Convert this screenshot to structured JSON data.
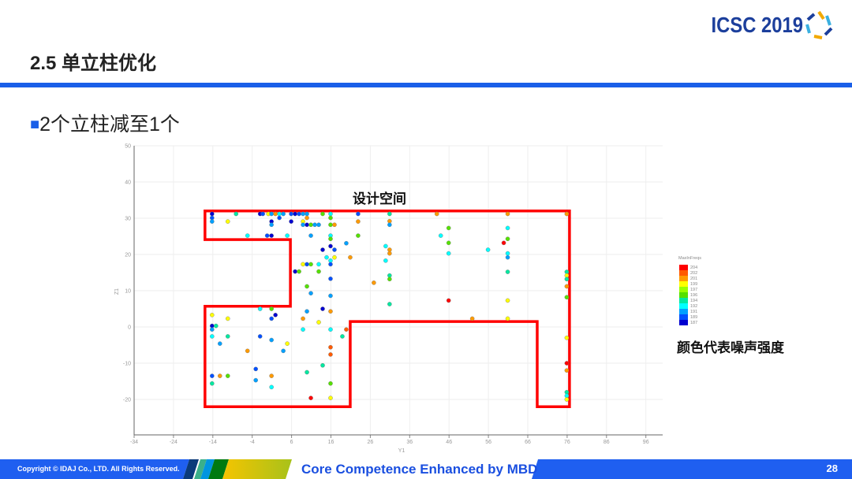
{
  "header": {
    "title": "2.5 单立柱优化",
    "logo_text": "ICSC 2019"
  },
  "bullet": {
    "marker": "■",
    "text": "2个立柱减至1个"
  },
  "annotations": {
    "design_space": "设计空间",
    "color_meaning": "颜色代表噪声强度"
  },
  "footer": {
    "copyright": "Copyright © IDAJ Co., LTD. All Rights Reserved.",
    "slogan": "Core Competence Enhanced by MBD",
    "page_number": "28"
  },
  "colors": {
    "accent": "#1a5fe8",
    "outline": "#ff0000"
  },
  "chart_data": {
    "type": "scatter",
    "xlabel": "Y1",
    "ylabel": "Z1",
    "xlim": [
      -34,
      100
    ],
    "ylim": [
      -30,
      50
    ],
    "xticks": [
      -34,
      -24,
      -14,
      -4,
      6,
      16,
      26,
      36,
      46,
      56,
      66,
      76,
      86,
      96
    ],
    "yticks": [
      50,
      40,
      30,
      20,
      10,
      0,
      -10,
      -20
    ],
    "grid": true,
    "legend": {
      "title": "MaxInFreqs",
      "placement": "right",
      "values": [
        204,
        202,
        201,
        199,
        197,
        196,
        194,
        192,
        191,
        189,
        187
      ],
      "colors": [
        "#ff0000",
        "#ff5a00",
        "#ff9a00",
        "#ffff00",
        "#9aff00",
        "#55e000",
        "#00e8a0",
        "#00ffff",
        "#00a0ff",
        "#0050ff",
        "#0000d0"
      ]
    },
    "design_space_outline": [
      [
        -16,
        32
      ],
      [
        76.6,
        32
      ],
      [
        76.6,
        -22
      ],
      [
        68.4,
        -22
      ],
      [
        68.4,
        1.5
      ],
      [
        20.9,
        1.5
      ],
      [
        20.9,
        -22
      ],
      [
        -16,
        -22
      ],
      [
        -16,
        5.7
      ],
      [
        5.7,
        5.7
      ],
      [
        5.7,
        24.1
      ],
      [
        -16,
        24.1
      ]
    ],
    "points": [
      [
        -14.2,
        31.2,
        187
      ],
      [
        -8.1,
        31.2,
        194
      ],
      [
        -2,
        31.2,
        187
      ],
      [
        -1.3,
        31.2,
        189
      ],
      [
        0.1,
        31.2,
        199
      ],
      [
        0.9,
        31.2,
        191
      ],
      [
        1.9,
        31.2,
        201
      ],
      [
        2.9,
        31.2,
        192
      ],
      [
        3.9,
        31.2,
        191
      ],
      [
        5.9,
        31.2,
        189
      ],
      [
        6.9,
        31.2,
        187
      ],
      [
        7.9,
        31.2,
        189
      ],
      [
        8.9,
        31.2,
        191
      ],
      [
        9.9,
        31.2,
        191
      ],
      [
        13.9,
        31.2,
        196
      ],
      [
        15.9,
        31.2,
        192
      ],
      [
        22.9,
        31.2,
        189
      ],
      [
        -14.2,
        30.1,
        189
      ],
      [
        2.9,
        30.1,
        189
      ],
      [
        9.9,
        30.1,
        201
      ],
      [
        15.9,
        30.1,
        196
      ],
      [
        -14.2,
        29.1,
        191
      ],
      [
        -10.2,
        29.1,
        199
      ],
      [
        0.9,
        29.1,
        187
      ],
      [
        5.9,
        29.1,
        187
      ],
      [
        8.9,
        29.1,
        199
      ],
      [
        22.9,
        29.1,
        201
      ],
      [
        0.9,
        28.2,
        191
      ],
      [
        8.9,
        28.2,
        191
      ],
      [
        9.9,
        28.2,
        187
      ],
      [
        10.9,
        28.2,
        196
      ],
      [
        11.9,
        28.2,
        191
      ],
      [
        12.9,
        28.2,
        191
      ],
      [
        15.9,
        28.2,
        196
      ],
      [
        16.9,
        28.2,
        201
      ],
      [
        -5.2,
        25.2,
        192
      ],
      [
        -0.2,
        25.2,
        189
      ],
      [
        0.9,
        25.2,
        187
      ],
      [
        4.9,
        25.2,
        192
      ],
      [
        10.9,
        25.2,
        191
      ],
      [
        15.9,
        25.2,
        192
      ],
      [
        22.9,
        25.2,
        196
      ],
      [
        15.9,
        24.3,
        196
      ],
      [
        19.9,
        23.1,
        191
      ],
      [
        15.9,
        22.3,
        187
      ],
      [
        13.9,
        21.3,
        187
      ],
      [
        16.9,
        21.3,
        189
      ],
      [
        14.9,
        19.2,
        192
      ],
      [
        16.9,
        19.2,
        199
      ],
      [
        20.9,
        19.2,
        201
      ],
      [
        15.9,
        18.3,
        192
      ],
      [
        8.9,
        17.3,
        199
      ],
      [
        9.9,
        17.3,
        189
      ],
      [
        10.9,
        17.3,
        196
      ],
      [
        12.9,
        17.3,
        192
      ],
      [
        15.9,
        17.3,
        189
      ],
      [
        6.9,
        15.3,
        187
      ],
      [
        7.9,
        15.3,
        196
      ],
      [
        12.9,
        15.3,
        196
      ],
      [
        15.9,
        13.3,
        189
      ],
      [
        9.9,
        11.2,
        196
      ],
      [
        10.9,
        9.3,
        191
      ],
      [
        15.9,
        8.6,
        191
      ],
      [
        -2,
        5,
        192
      ],
      [
        0.9,
        5,
        196
      ],
      [
        13.9,
        5,
        187
      ],
      [
        9.9,
        4.3,
        191
      ],
      [
        15.9,
        4.3,
        201
      ],
      [
        -14.2,
        3.3,
        199
      ],
      [
        1.9,
        3.3,
        187
      ],
      [
        -10.2,
        2.3,
        199
      ],
      [
        0.9,
        2.3,
        189
      ],
      [
        8.9,
        2.3,
        201
      ],
      [
        12.9,
        1.3,
        199
      ],
      [
        -14.2,
        0.3,
        187
      ],
      [
        -13.2,
        0.3,
        194
      ],
      [
        -14.2,
        -0.7,
        191
      ],
      [
        8.9,
        -0.7,
        192
      ],
      [
        15.9,
        -0.7,
        192
      ],
      [
        19.9,
        -0.7,
        202
      ],
      [
        -14.2,
        -2.6,
        192
      ],
      [
        -10.2,
        -2.6,
        194
      ],
      [
        -2,
        -2.6,
        189
      ],
      [
        18.9,
        -2.6,
        194
      ],
      [
        0.9,
        -3.6,
        191
      ],
      [
        -12.2,
        -4.6,
        191
      ],
      [
        4.9,
        -4.6,
        199
      ],
      [
        15.9,
        -5.6,
        202
      ],
      [
        -5.2,
        -6.6,
        201
      ],
      [
        3.9,
        -6.6,
        191
      ],
      [
        15.9,
        -7.6,
        202
      ],
      [
        13.9,
        -10.6,
        194
      ],
      [
        -3.1,
        -11.6,
        189
      ],
      [
        9.9,
        -12.5,
        194
      ],
      [
        -14.2,
        -13.5,
        189
      ],
      [
        -12.2,
        -13.5,
        201
      ],
      [
        -10.2,
        -13.5,
        196
      ],
      [
        0.9,
        -13.5,
        201
      ],
      [
        -3.1,
        -14.7,
        191
      ],
      [
        -14.2,
        -15.6,
        194
      ],
      [
        15.9,
        -15.6,
        196
      ],
      [
        0.9,
        -16.6,
        192
      ],
      [
        10.9,
        -19.6,
        204
      ],
      [
        15.9,
        -19.6,
        199
      ],
      [
        30.9,
        31.2,
        194
      ],
      [
        42.9,
        31.2,
        201
      ],
      [
        60.9,
        31.2,
        201
      ],
      [
        75.9,
        31.2,
        201
      ],
      [
        30.9,
        29.2,
        201
      ],
      [
        30.9,
        28.2,
        191
      ],
      [
        45.9,
        27.3,
        196
      ],
      [
        60.9,
        27.3,
        192
      ],
      [
        43.9,
        25.2,
        192
      ],
      [
        60.9,
        24.3,
        196
      ],
      [
        45.9,
        23.2,
        196
      ],
      [
        59.9,
        23.2,
        204
      ],
      [
        29.9,
        22.3,
        192
      ],
      [
        30.9,
        21.3,
        201
      ],
      [
        55.9,
        21.3,
        192
      ],
      [
        30.9,
        20.3,
        201
      ],
      [
        45.9,
        20.3,
        192
      ],
      [
        60.9,
        20.3,
        192
      ],
      [
        60.9,
        19.2,
        191
      ],
      [
        29.9,
        18.3,
        192
      ],
      [
        60.9,
        15.2,
        194
      ],
      [
        75.9,
        15.2,
        194
      ],
      [
        30.9,
        14.2,
        194
      ],
      [
        75.9,
        14.2,
        199
      ],
      [
        30.9,
        13.2,
        196
      ],
      [
        75.9,
        13.2,
        194
      ],
      [
        26.9,
        12.2,
        201
      ],
      [
        75.9,
        11.2,
        201
      ],
      [
        75.9,
        8.2,
        196
      ],
      [
        45.9,
        7.3,
        204
      ],
      [
        60.9,
        7.3,
        199
      ],
      [
        30.9,
        6.3,
        194
      ],
      [
        51.9,
        2.3,
        201
      ],
      [
        60.9,
        2.3,
        199
      ],
      [
        75.9,
        -3,
        199
      ],
      [
        75.9,
        -10,
        204
      ],
      [
        75.9,
        -12,
        201
      ],
      [
        75.9,
        -18,
        194
      ],
      [
        75.9,
        -19,
        192
      ],
      [
        75.9,
        -20,
        199
      ]
    ]
  }
}
